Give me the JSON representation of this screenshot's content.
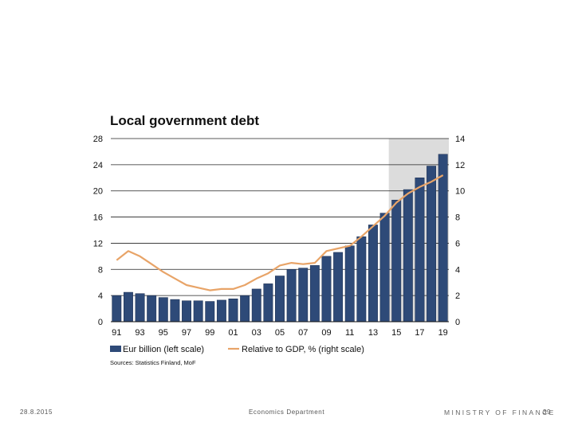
{
  "chart_data": {
    "type": "bar",
    "title": "Local government debt",
    "categories": [
      "91",
      "92",
      "93",
      "94",
      "95",
      "96",
      "97",
      "98",
      "99",
      "00",
      "01",
      "02",
      "03",
      "04",
      "05",
      "06",
      "07",
      "08",
      "09",
      "10",
      "11",
      "12",
      "13",
      "14",
      "15",
      "16",
      "17",
      "18",
      "19"
    ],
    "x_tick_labels": [
      "91",
      "93",
      "95",
      "97",
      "99",
      "01",
      "03",
      "05",
      "07",
      "09",
      "11",
      "13",
      "15",
      "17",
      "19"
    ],
    "left_axis": {
      "ylim": [
        0,
        28
      ],
      "ticks": [
        "0",
        "4",
        "8",
        "12",
        "16",
        "20",
        "24",
        "28"
      ]
    },
    "right_axis": {
      "ylim": [
        0,
        14
      ],
      "ticks": [
        "0",
        "2",
        "4",
        "6",
        "8",
        "10",
        "12",
        "14"
      ]
    },
    "forecast_shading_from": "15",
    "series": [
      {
        "name": "Eur billion (left scale)",
        "type": "bar",
        "axis": "left",
        "color": "#2e4a78",
        "values": [
          4.0,
          4.5,
          4.3,
          4.0,
          3.7,
          3.4,
          3.2,
          3.2,
          3.1,
          3.3,
          3.5,
          4.0,
          5.0,
          5.8,
          7.0,
          8.0,
          8.2,
          8.6,
          10.0,
          10.6,
          11.6,
          13.0,
          14.8,
          16.6,
          18.6,
          20.2,
          22.0,
          23.8,
          25.6
        ]
      },
      {
        "name": "Relative to GDP, % (right scale)",
        "type": "line",
        "axis": "right",
        "color": "#e8a468",
        "values": [
          4.7,
          5.4,
          5.0,
          4.4,
          3.8,
          3.3,
          2.8,
          2.6,
          2.4,
          2.5,
          2.5,
          2.8,
          3.3,
          3.7,
          4.3,
          4.5,
          4.4,
          4.5,
          5.4,
          5.6,
          5.8,
          6.5,
          7.3,
          8.1,
          9.1,
          9.8,
          10.3,
          10.7,
          11.2
        ]
      }
    ],
    "legend": [
      "Eur billion (left scale)",
      "Relative to GDP, % (right scale)"
    ],
    "source": "Sources: Statistics Finland, MoF"
  },
  "footer": {
    "date": "28.8.2015",
    "department": "Economics Department",
    "ministry": "MINISTRY OF FINANCE",
    "page": "39"
  }
}
